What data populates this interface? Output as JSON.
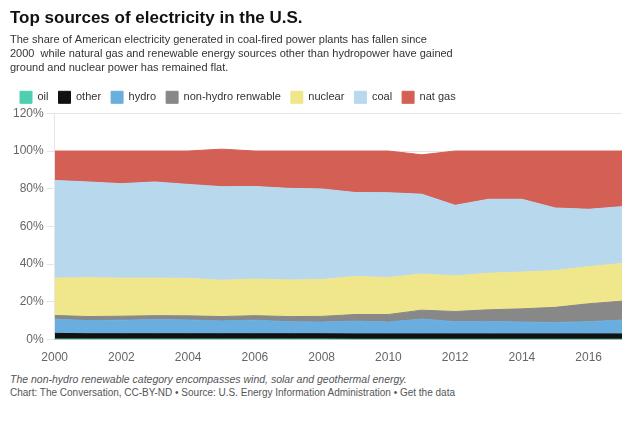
{
  "chart_data": {
    "type": "area",
    "title": "Top sources of electricity in the U.S.",
    "subtitle": "The share of American electricity generated in coal-fired power plants has fallen since\n2000  while natural gas and renewable energy sources other than hydropower have gained\nground and nuclear power has remained flat.",
    "footnote": "The non-hydro renewable category encompasses wind, solar and geothermal energy.",
    "source": "Chart: The Conversation, CC-BY-ND • Source: U.S. Energy Information Administration • Get the data",
    "x": [
      2000,
      2001,
      2002,
      2003,
      2004,
      2005,
      2006,
      2007,
      2008,
      2009,
      2010,
      2011,
      2012,
      2013,
      2014,
      2015,
      2016,
      2017
    ],
    "series": [
      {
        "name": "oil",
        "color": "#4ecfb0",
        "values": [
          0.3,
          0.3,
          0.3,
          0.3,
          0.3,
          0.3,
          0.3,
          0.3,
          0.3,
          0.2,
          0.2,
          0.2,
          0.2,
          0.2,
          0.2,
          0.2,
          0.2,
          0.2
        ]
      },
      {
        "name": "other",
        "color": "#111111",
        "values": [
          3.0,
          2.8,
          2.8,
          2.8,
          2.8,
          2.8,
          2.8,
          2.8,
          2.8,
          2.8,
          2.8,
          2.8,
          2.8,
          2.8,
          2.8,
          2.8,
          2.8,
          2.8
        ]
      },
      {
        "name": "hydro",
        "color": "#6aaee0",
        "values": [
          7.5,
          7.0,
          7.2,
          7.5,
          7.3,
          6.8,
          7.2,
          6.4,
          6.2,
          6.8,
          6.3,
          7.9,
          6.5,
          6.6,
          6.3,
          6.1,
          6.5,
          7.4
        ]
      },
      {
        "name": "non-hydro renwable",
        "color": "#888888",
        "values": [
          2.0,
          2.1,
          2.1,
          2.1,
          2.2,
          2.3,
          2.4,
          2.7,
          3.0,
          3.5,
          4.0,
          4.7,
          5.4,
          6.2,
          7.0,
          8.0,
          9.5,
          10.0
        ]
      },
      {
        "name": "nuclear",
        "color": "#f0e68c",
        "values": [
          19.8,
          20.6,
          20.2,
          19.9,
          19.9,
          19.3,
          19.4,
          19.4,
          19.6,
          20.2,
          19.6,
          19.2,
          18.9,
          19.4,
          19.5,
          19.5,
          19.7,
          20.0
        ]
      },
      {
        "name": "coal",
        "color": "#b8d8ee",
        "values": [
          51.8,
          50.8,
          50.1,
          51.0,
          49.8,
          49.6,
          49.1,
          48.6,
          48.0,
          44.5,
          45.0,
          42.3,
          37.4,
          39.2,
          38.6,
          33.2,
          30.4,
          30.1
        ]
      },
      {
        "name": "nat gas",
        "color": "#d45f55",
        "values": [
          15.6,
          16.4,
          17.3,
          16.4,
          17.7,
          19.9,
          18.8,
          19.8,
          20.1,
          22.0,
          22.1,
          20.9,
          28.8,
          25.6,
          25.6,
          30.2,
          30.9,
          29.5
        ]
      }
    ],
    "stacked": true,
    "xlim": [
      2000,
      2017
    ],
    "xticks": [
      2000,
      2002,
      2004,
      2006,
      2008,
      2010,
      2012,
      2014,
      2016
    ],
    "ylim": [
      0,
      120
    ],
    "yticks": [
      {
        "value": 0,
        "label": "0%"
      },
      {
        "value": 20,
        "label": "20%"
      },
      {
        "value": 40,
        "label": "40%"
      },
      {
        "value": 60,
        "label": "60%"
      },
      {
        "value": 80,
        "label": "80%"
      },
      {
        "value": 100,
        "label": "100%"
      },
      {
        "value": 120,
        "label": "120%"
      }
    ],
    "grid": "y",
    "legend": "top"
  }
}
